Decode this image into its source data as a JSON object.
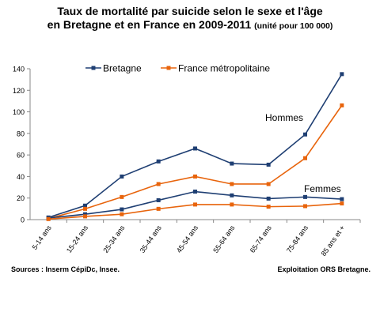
{
  "title": {
    "line1": "Taux de mortalité par suicide selon le sexe et l'âge",
    "line2": "en Bretagne et en France en 2009-2011",
    "unit": "(unité pour 100 000)"
  },
  "footer": {
    "sources": "Sources : Inserm CépiDc, Insee.",
    "exploitation": "Exploitation ORS Bretagne."
  },
  "chart_data": {
    "type": "line",
    "categories": [
      "5-14 ans",
      "15-24 ans",
      "25-34 ans",
      "35-44 ans",
      "45-54 ans",
      "55-64 ans",
      "65-74 ans",
      "75-84 ans",
      "85 ans et +"
    ],
    "ylim": [
      0,
      140
    ],
    "yticks": [
      0,
      20,
      40,
      60,
      80,
      100,
      120,
      140
    ],
    "grid": false,
    "legend_position": "top",
    "annotations": [
      {
        "text": "Hommes"
      },
      {
        "text": "Femmes"
      }
    ],
    "series": [
      {
        "name": "Bretagne",
        "group": "Hommes",
        "color": "#1f3f73",
        "marker": "square",
        "values": [
          2,
          13,
          40,
          54,
          66,
          52,
          51,
          79,
          135
        ]
      },
      {
        "name": "France métropolitaine",
        "group": "Hommes",
        "color": "#e8640c",
        "marker": "square",
        "values": [
          1,
          10,
          21,
          33,
          40,
          33,
          33,
          57,
          106
        ]
      },
      {
        "name": "Bretagne",
        "group": "Femmes",
        "color": "#1f3f73",
        "marker": "square",
        "values": [
          1.5,
          5,
          9.5,
          18,
          26,
          22.5,
          19.5,
          21,
          19
        ]
      },
      {
        "name": "France métropolitaine",
        "group": "Femmes",
        "color": "#e8640c",
        "marker": "square",
        "values": [
          0.5,
          3,
          5,
          10,
          14,
          14,
          12,
          12.5,
          15
        ]
      }
    ],
    "legend": [
      {
        "label": "Bretagne",
        "color": "#1f3f73"
      },
      {
        "label": "France métropolitaine",
        "color": "#e8640c"
      }
    ]
  }
}
